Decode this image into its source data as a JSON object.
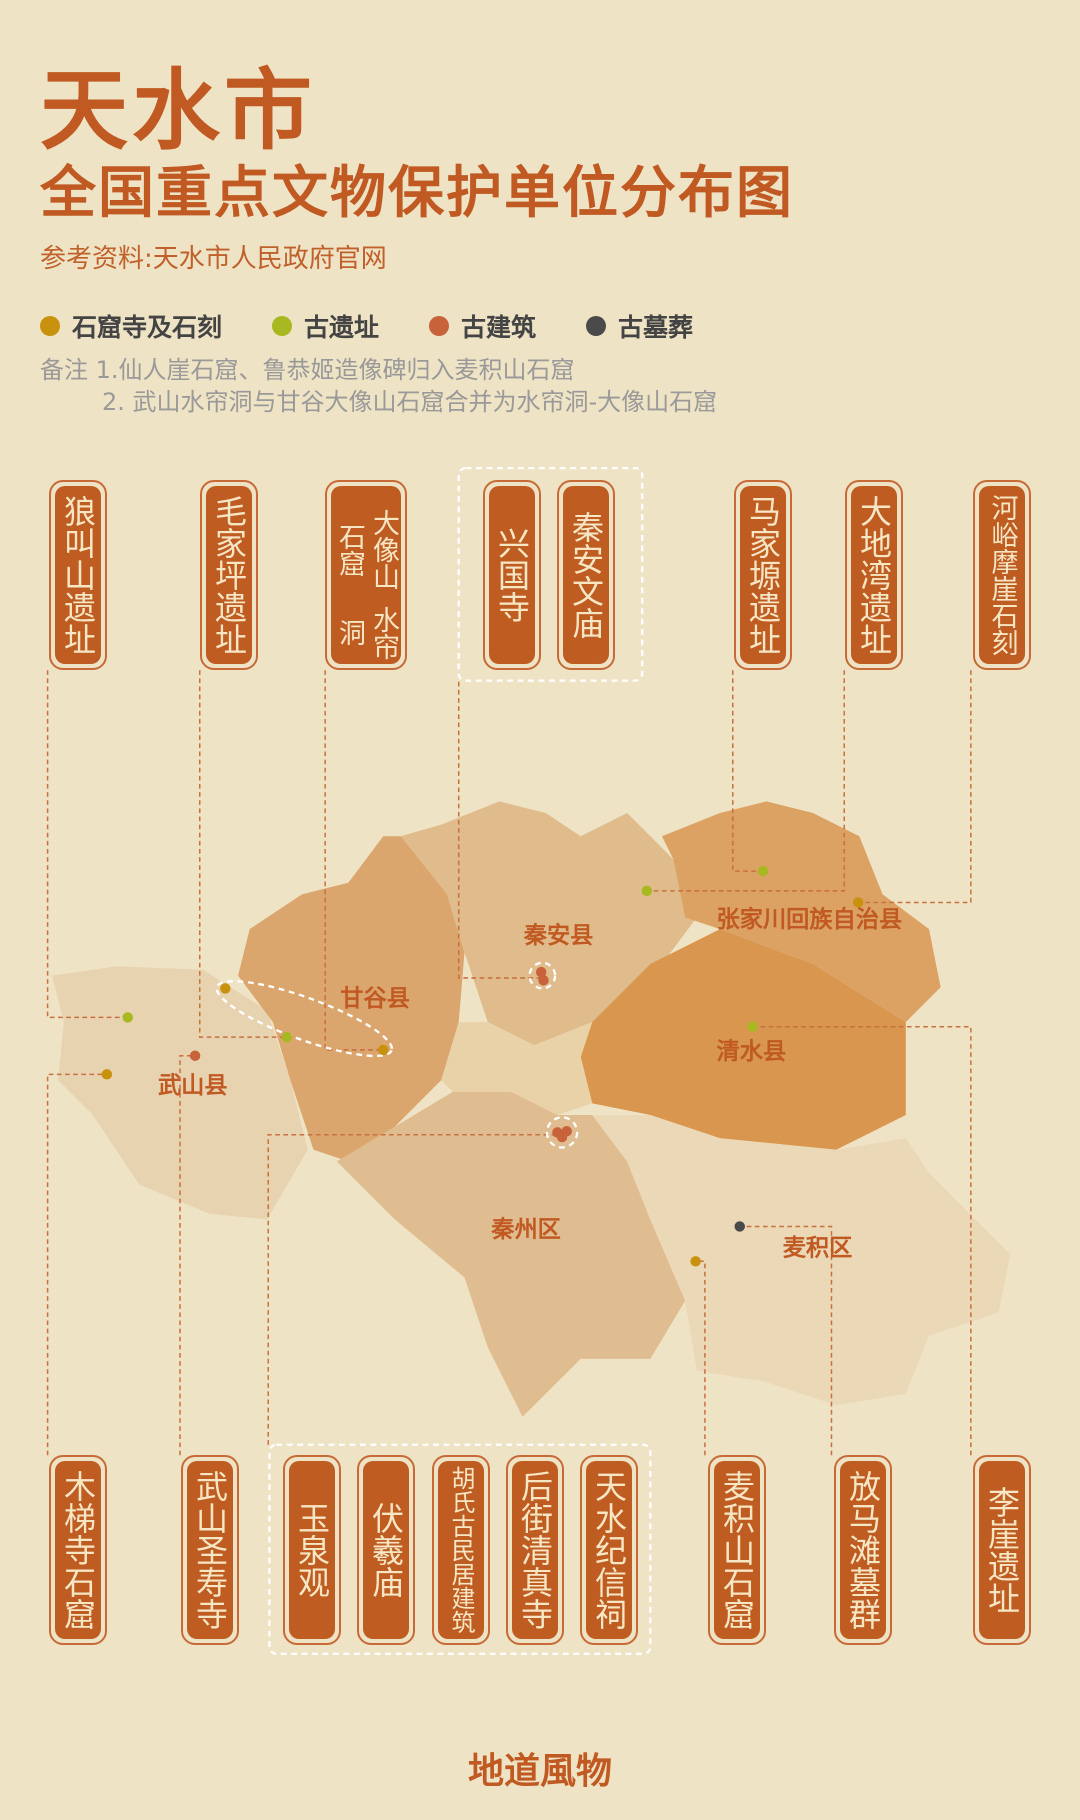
{
  "title": "天水市",
  "subtitle": "全国重点文物保护单位分布图",
  "source": "参考资料:天水市人民政府官网",
  "legend": [
    {
      "label": "石窟寺及石刻",
      "color": "#c8920f"
    },
    {
      "label": "古遗址",
      "color": "#a8b820"
    },
    {
      "label": "古建筑",
      "color": "#c8623a"
    },
    {
      "label": "古墓葬",
      "color": "#4a4a4a"
    }
  ],
  "notes": {
    "prefix": "备注",
    "line1": "1.仙人崖石窟、鲁恭姬造像碑归入麦积山石窟",
    "line2": "2. 武山水帘洞与甘谷大像山石窟合并为水帘洞-大像山石窟"
  },
  "counties": [
    "秦安县",
    "张家川回族自治县",
    "甘谷县",
    "清水县",
    "武山县",
    "秦州区",
    "麦积区"
  ],
  "top_sites": [
    "狼叫山遗址",
    "毛家坪遗址",
    "大像山石窟",
    "水帘洞",
    "兴国寺",
    "秦安文庙",
    "马家塬遗址",
    "大地湾遗址",
    "河峪摩崖石刻"
  ],
  "bottom_sites": [
    "木梯寺石窟",
    "武山圣寿寺",
    "玉泉观",
    "伏羲庙",
    "胡氏古民居建筑",
    "后街清真寺",
    "天水纪信祠",
    "麦积山石窟",
    "放马滩墓群",
    "李崖遗址"
  ],
  "footer": "地道風物"
}
